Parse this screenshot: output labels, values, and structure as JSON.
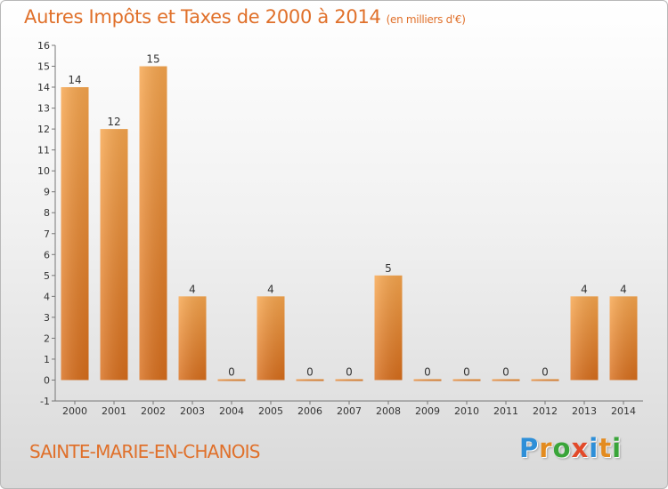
{
  "title": "Autres Impôts et Taxes de 2000 à 2014",
  "unit": "(en milliers d'€)",
  "place": "SAINTE-MARIE-EN-CHANOIS",
  "logo": {
    "letters": [
      "P",
      "r",
      "o",
      "x",
      "i",
      "t",
      "i"
    ],
    "colors": [
      "#2e8fd8",
      "#e38b1f",
      "#3aa53a",
      "#e24a2a",
      "#2e8fd8",
      "#e38b1f",
      "#3aa53a"
    ]
  },
  "chart_data": {
    "type": "bar",
    "categories": [
      "2000",
      "2001",
      "2002",
      "2003",
      "2004",
      "2005",
      "2006",
      "2007",
      "2008",
      "2009",
      "2010",
      "2011",
      "2012",
      "2013",
      "2014"
    ],
    "values": [
      14,
      12,
      15,
      4,
      0,
      4,
      0,
      0,
      5,
      0,
      0,
      0,
      0,
      4,
      4
    ],
    "ylim": [
      -1,
      16
    ],
    "yticks": [
      -1,
      0,
      1,
      2,
      3,
      4,
      5,
      6,
      7,
      8,
      9,
      10,
      11,
      12,
      13,
      14,
      15,
      16
    ],
    "grid": false,
    "bar_color_light": "#f7a64e",
    "bar_color_dark": "#d86e1c"
  }
}
